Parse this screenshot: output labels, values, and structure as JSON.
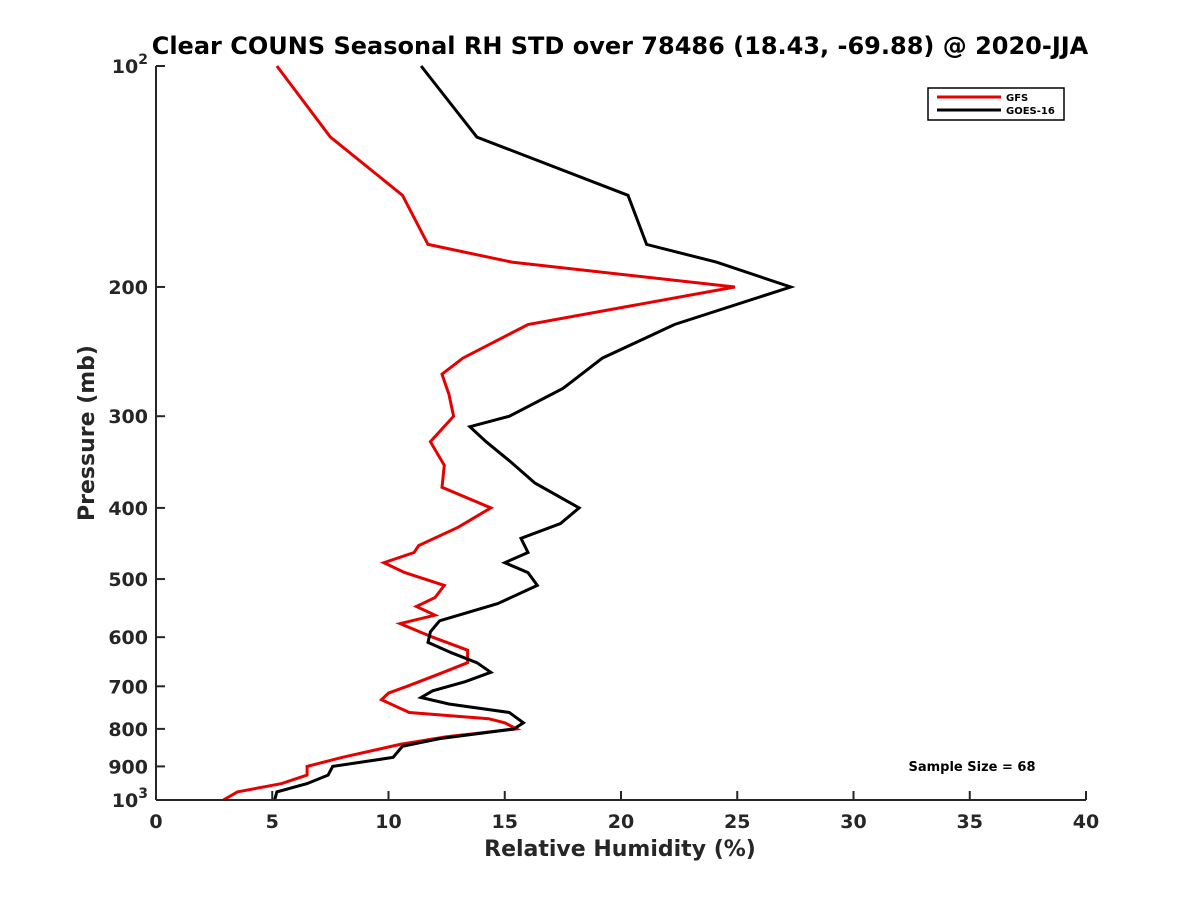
{
  "chart_data": {
    "type": "line",
    "title": "Clear COUNS Seasonal RH STD over 78486 (18.43, -69.88) @ 2020-JJA",
    "xlabel": "Relative Humidity (%)",
    "ylabel": "Pressure (mb)",
    "xlim": [
      0,
      40
    ],
    "ylim": [
      100,
      1000
    ],
    "yscale": "log",
    "y_reversed": true,
    "x_ticks": [
      0,
      5,
      10,
      15,
      20,
      25,
      30,
      35,
      40
    ],
    "x_tick_labels": [
      "0",
      "5",
      "10",
      "15",
      "20",
      "25",
      "30",
      "35",
      "40"
    ],
    "y_ticks": [
      100,
      200,
      300,
      400,
      500,
      600,
      700,
      800,
      900,
      1000
    ],
    "y_tick_labels": [
      {
        "base": "10",
        "exp": "2"
      },
      {
        "base": "200",
        "exp": ""
      },
      {
        "base": "300",
        "exp": ""
      },
      {
        "base": "400",
        "exp": ""
      },
      {
        "base": "500",
        "exp": ""
      },
      {
        "base": "600",
        "exp": ""
      },
      {
        "base": "700",
        "exp": ""
      },
      {
        "base": "800",
        "exp": ""
      },
      {
        "base": "900",
        "exp": ""
      },
      {
        "base": "10",
        "exp": "3"
      }
    ],
    "legend_position": "top-right",
    "annotation": "Sample Size = 68",
    "series": [
      {
        "name": "GFS",
        "color": "#e60000",
        "points": [
          [
            5.2,
            100
          ],
          [
            7.5,
            125
          ],
          [
            10.6,
            150
          ],
          [
            11.7,
            175
          ],
          [
            15.3,
            185
          ],
          [
            24.9,
            200
          ],
          [
            16.0,
            225
          ],
          [
            13.2,
            250
          ],
          [
            12.3,
            263
          ],
          [
            12.6,
            280
          ],
          [
            12.8,
            300
          ],
          [
            11.8,
            325
          ],
          [
            12.4,
            350
          ],
          [
            12.3,
            375
          ],
          [
            14.4,
            400
          ],
          [
            13.0,
            425
          ],
          [
            11.3,
            450
          ],
          [
            11.1,
            460
          ],
          [
            9.8,
            475
          ],
          [
            10.7,
            490
          ],
          [
            12.4,
            510
          ],
          [
            12.0,
            530
          ],
          [
            11.2,
            545
          ],
          [
            12.0,
            560
          ],
          [
            10.5,
            575
          ],
          [
            11.9,
            600
          ],
          [
            13.4,
            625
          ],
          [
            13.4,
            650
          ],
          [
            12.1,
            675
          ],
          [
            10.8,
            700
          ],
          [
            10.0,
            715
          ],
          [
            9.7,
            730
          ],
          [
            10.3,
            745
          ],
          [
            10.9,
            760
          ],
          [
            14.3,
            775
          ],
          [
            15.0,
            785
          ],
          [
            15.5,
            800
          ],
          [
            12.5,
            820
          ],
          [
            10.5,
            840
          ],
          [
            8.0,
            875
          ],
          [
            6.5,
            900
          ],
          [
            6.5,
            925
          ],
          [
            5.4,
            950
          ],
          [
            3.5,
            975
          ],
          [
            2.9,
            1000
          ]
        ]
      },
      {
        "name": "GOES-16",
        "color": "#000000",
        "points": [
          [
            11.4,
            100
          ],
          [
            13.8,
            125
          ],
          [
            20.3,
            150
          ],
          [
            21.1,
            175
          ],
          [
            24.1,
            185
          ],
          [
            27.3,
            200
          ],
          [
            22.3,
            225
          ],
          [
            19.2,
            250
          ],
          [
            17.5,
            275
          ],
          [
            15.2,
            300
          ],
          [
            13.5,
            310
          ],
          [
            14.2,
            325
          ],
          [
            15.2,
            345
          ],
          [
            16.3,
            370
          ],
          [
            18.2,
            400
          ],
          [
            17.4,
            420
          ],
          [
            15.7,
            440
          ],
          [
            16.0,
            460
          ],
          [
            15.0,
            475
          ],
          [
            16.0,
            490
          ],
          [
            16.4,
            510
          ],
          [
            14.7,
            540
          ],
          [
            12.2,
            570
          ],
          [
            11.8,
            590
          ],
          [
            11.7,
            610
          ],
          [
            12.7,
            630
          ],
          [
            13.8,
            650
          ],
          [
            14.4,
            670
          ],
          [
            13.3,
            690
          ],
          [
            11.9,
            710
          ],
          [
            11.4,
            725
          ],
          [
            12.6,
            740
          ],
          [
            15.2,
            760
          ],
          [
            15.8,
            785
          ],
          [
            15.4,
            800
          ],
          [
            12.2,
            825
          ],
          [
            10.6,
            845
          ],
          [
            10.2,
            875
          ],
          [
            7.6,
            900
          ],
          [
            7.4,
            925
          ],
          [
            6.5,
            950
          ],
          [
            5.2,
            975
          ],
          [
            5.1,
            1000
          ]
        ]
      }
    ]
  }
}
